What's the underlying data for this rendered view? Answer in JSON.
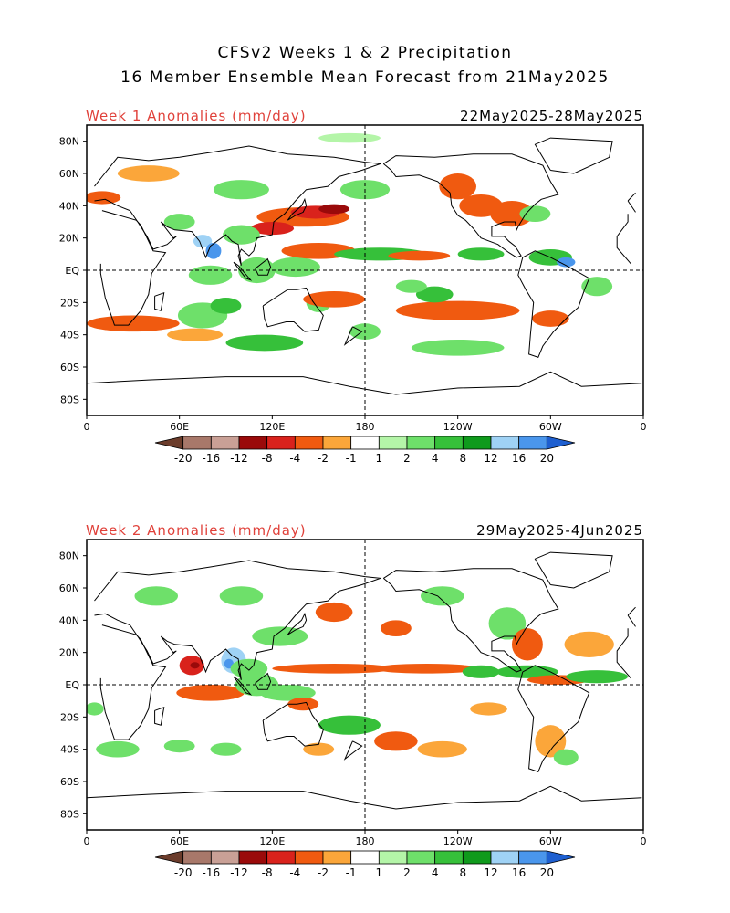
{
  "title": {
    "line1": "CFSv2 Weeks 1 & 2 Precipitation",
    "line2": "16 Member Ensemble Mean Forecast from 21May2025"
  },
  "panels": [
    {
      "label": "Week 1 Anomalies (mm/day)",
      "date_range": "22May2025-28May2025",
      "lat_ticks": [
        "80N",
        "60N",
        "40N",
        "20N",
        "EQ",
        "20S",
        "40S",
        "60S",
        "80S"
      ],
      "lon_ticks": [
        "0",
        "60E",
        "120E",
        "180",
        "120W",
        "60W",
        "0"
      ]
    },
    {
      "label": "Week 2 Anomalies (mm/day)",
      "date_range": "29May2025-4Jun2025",
      "lat_ticks": [
        "80N",
        "60N",
        "40N",
        "20N",
        "EQ",
        "20S",
        "40S",
        "60S",
        "80S"
      ],
      "lon_ticks": [
        "0",
        "60E",
        "120E",
        "180",
        "120W",
        "60W",
        "0"
      ]
    }
  ],
  "legend": {
    "labels": [
      "-20",
      "-16",
      "-12",
      "-8",
      "-4",
      "-2",
      "-1",
      "1",
      "2",
      "4",
      "8",
      "12",
      "16",
      "20"
    ],
    "colors": [
      "#6b3c2b",
      "#a8786a",
      "#c9a096",
      "#9a0a0a",
      "#d9221c",
      "#f05a10",
      "#fba63a",
      "#ffffff",
      "#b4f5a8",
      "#6ee06a",
      "#36c03a",
      "#0f9a1c",
      "#9fd2f5",
      "#4a96ec",
      "#1e5fd0"
    ]
  }
}
